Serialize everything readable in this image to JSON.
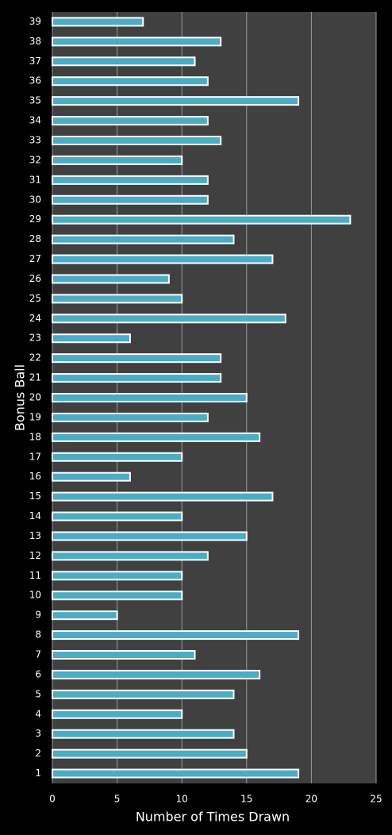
{
  "chart_data": {
    "type": "barh",
    "x_label": "Number of Times Drawn",
    "y_label": "Bonus Ball",
    "categories": [
      "1",
      "2",
      "3",
      "4",
      "5",
      "6",
      "7",
      "8",
      "9",
      "10",
      "11",
      "12",
      "13",
      "14",
      "15",
      "16",
      "17",
      "18",
      "19",
      "20",
      "21",
      "22",
      "23",
      "24",
      "25",
      "26",
      "27",
      "28",
      "29",
      "30",
      "31",
      "32",
      "33",
      "34",
      "35",
      "36",
      "37",
      "38",
      "39"
    ],
    "values": [
      19,
      15,
      14,
      10,
      14,
      16,
      11,
      19,
      5,
      10,
      10,
      12,
      15,
      10,
      17,
      6,
      10,
      16,
      12,
      15,
      13,
      13,
      6,
      18,
      10,
      9,
      17,
      14,
      23,
      12,
      12,
      10,
      13,
      12,
      19,
      12,
      11,
      13,
      7
    ],
    "color": "#4bacc6",
    "xlim": [
      0,
      25
    ],
    "xticks": [
      0,
      5,
      10,
      15,
      20,
      25
    ],
    "grid": true
  }
}
